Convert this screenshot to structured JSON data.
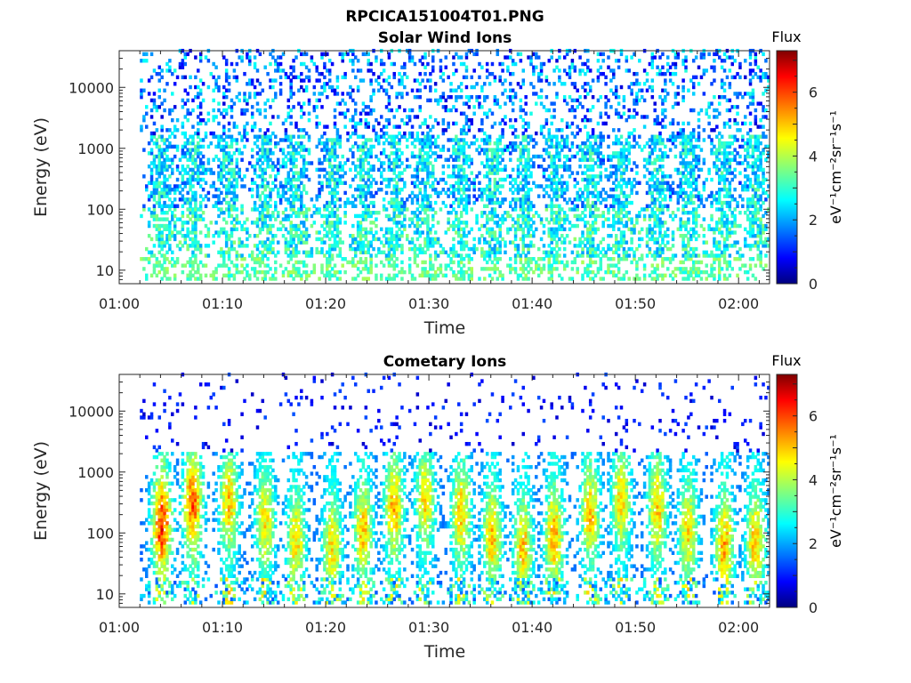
{
  "figure_title": "RPCICA151004T01.PNG",
  "colors": {
    "colormap": "jet",
    "axis": "#262626",
    "background": "#ffffff"
  },
  "chart_data": [
    {
      "type": "heatmap",
      "title": "Solar Wind Ions",
      "xlabel": "Time",
      "ylabel": "Energy (eV)",
      "x_ticks": [
        "01:00",
        "01:10",
        "01:20",
        "01:30",
        "01:40",
        "01:50",
        "02:00"
      ],
      "xlim": [
        "01:00",
        "02:03"
      ],
      "data_start": "01:02",
      "y_scale": "log",
      "y_ticks": [
        "10",
        "100",
        "1000",
        "10000"
      ],
      "ylim": [
        6,
        40000
      ],
      "colorbar": {
        "label": "Flux",
        "units": "eV⁻¹cm⁻²sr⁻¹s⁻¹",
        "ticks": [
          "0",
          "2",
          "4",
          "6"
        ],
        "range": [
          0,
          7.3
        ]
      },
      "pulse_centers_min": [
        4,
        7,
        10.5,
        14,
        17,
        20.5,
        23.5,
        26.5,
        29.5,
        33,
        36,
        39,
        42,
        45.5,
        48.5,
        52,
        55,
        58.5,
        61.5
      ],
      "description_levels": {
        "low_energy_band_flux": 3.5,
        "mid_energy_band_flux": 2.5,
        "high_energy_scatter_flux": 1.5
      }
    },
    {
      "type": "heatmap",
      "title": "Cometary Ions",
      "xlabel": "Time",
      "ylabel": "Energy (eV)",
      "x_ticks": [
        "01:00",
        "01:10",
        "01:20",
        "01:30",
        "01:40",
        "01:50",
        "02:00"
      ],
      "xlim": [
        "01:00",
        "02:03"
      ],
      "data_start": "01:02",
      "y_scale": "log",
      "y_ticks": [
        "10",
        "100",
        "1000",
        "10000"
      ],
      "ylim": [
        6,
        40000
      ],
      "colorbar": {
        "label": "Flux",
        "units": "eV⁻¹cm⁻²sr⁻¹s⁻¹",
        "ticks": [
          "0",
          "2",
          "4",
          "6"
        ],
        "range": [
          0,
          7.3
        ]
      },
      "pulse_centers_min": [
        4,
        7,
        10.5,
        14,
        17,
        20.5,
        23.5,
        26.5,
        29.5,
        33,
        36,
        39,
        42,
        45.5,
        48.5,
        52,
        55,
        58.5,
        61.5
      ],
      "peak_flux": [
        6.4,
        6.0,
        5.2,
        5.0,
        5.0,
        5.0,
        5.2,
        5.4,
        5.0,
        5.2,
        5.2,
        5.2,
        5.4,
        5.2,
        5.0,
        5.2,
        5.0,
        5.4,
        5.2
      ]
    }
  ]
}
